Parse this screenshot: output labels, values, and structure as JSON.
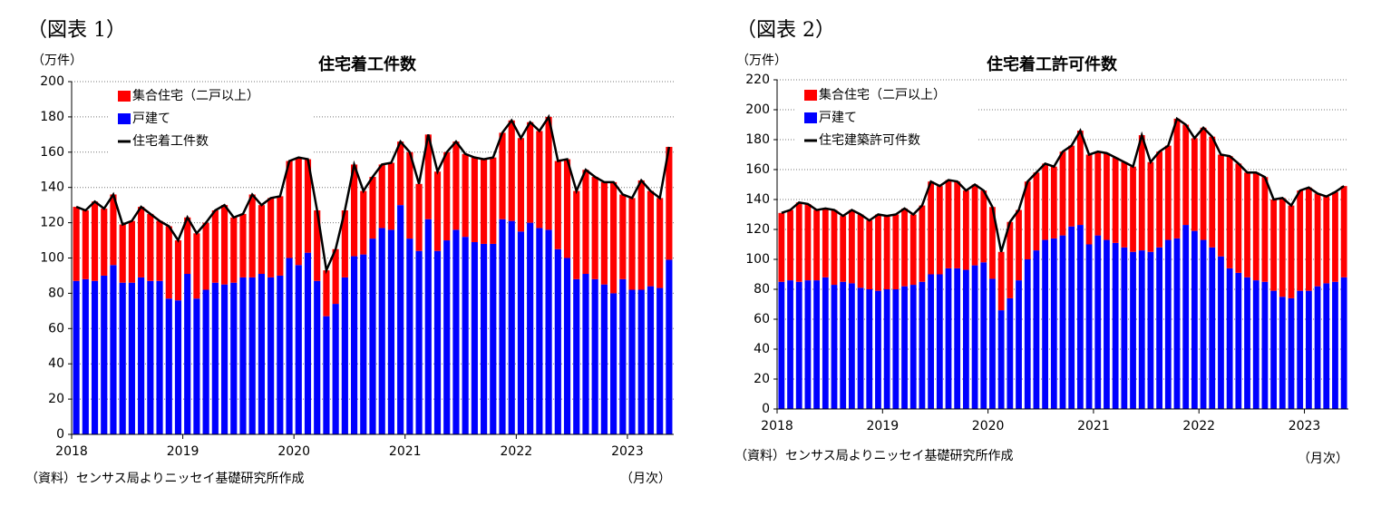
{
  "chart_data": [
    {
      "type": "bar",
      "stacked": true,
      "figure_label": "（図表 1）",
      "title": "住宅着工件数",
      "y_label": "（万件）",
      "x_unit": "（月次）",
      "source": "（資料）センサス局よりニッセイ基礎研究所作成",
      "categories": [
        "2018",
        null,
        null,
        null,
        null,
        null,
        null,
        null,
        null,
        null,
        null,
        null,
        "2019",
        null,
        null,
        null,
        null,
        null,
        null,
        null,
        null,
        null,
        null,
        null,
        "2020",
        null,
        null,
        null,
        null,
        null,
        null,
        null,
        null,
        null,
        null,
        null,
        "2021",
        null,
        null,
        null,
        null,
        null,
        null,
        null,
        null,
        null,
        null,
        null,
        "2022",
        null,
        null,
        null,
        null,
        null,
        null,
        null,
        null,
        null,
        null,
        null,
        "2023",
        null,
        null,
        null,
        null
      ],
      "ylim": [
        0,
        200
      ],
      "yticks": [
        0,
        20,
        40,
        60,
        80,
        100,
        120,
        140,
        160,
        180,
        200
      ],
      "grid": true,
      "series": [
        {
          "name": "集合住宅（二戸以上）",
          "color": "#ff0000",
          "stack": true,
          "values": [
            42,
            39,
            45,
            38,
            40,
            33,
            35,
            40,
            38,
            34,
            41,
            34,
            32,
            37,
            38,
            41,
            45,
            37,
            36,
            47,
            39,
            45,
            45,
            55,
            61,
            53,
            40,
            26,
            31,
            38,
            52,
            36,
            35,
            36,
            38,
            36,
            49,
            38,
            48,
            45,
            50,
            50,
            47,
            48,
            48,
            49,
            49,
            57,
            53,
            57,
            55,
            64,
            50,
            56,
            50,
            59,
            58,
            58,
            63,
            48,
            52,
            62,
            54,
            51,
            64
          ]
        },
        {
          "name": "戸建て",
          "color": "#0000ff",
          "stack": true,
          "values": [
            87,
            88,
            87,
            90,
            96,
            86,
            86,
            89,
            87,
            87,
            77,
            76,
            91,
            77,
            82,
            86,
            85,
            86,
            89,
            89,
            91,
            89,
            90,
            100,
            96,
            103,
            87,
            67,
            74,
            89,
            101,
            102,
            111,
            117,
            116,
            130,
            111,
            104,
            122,
            104,
            110,
            116,
            112,
            109,
            108,
            108,
            122,
            121,
            115,
            120,
            117,
            116,
            105,
            100,
            88,
            91,
            88,
            85,
            80,
            88,
            82,
            82,
            84,
            83,
            99
          ]
        },
        {
          "name": "住宅着工件数",
          "color": "#000000",
          "line": true,
          "values": [
            129,
            127,
            132,
            128,
            136,
            119,
            121,
            129,
            125,
            121,
            118,
            110,
            123,
            114,
            120,
            127,
            130,
            123,
            125,
            136,
            130,
            134,
            135,
            155,
            157,
            156,
            127,
            93,
            105,
            127,
            153,
            138,
            146,
            153,
            154,
            166,
            160,
            142,
            170,
            149,
            160,
            166,
            159,
            157,
            156,
            157,
            171,
            178,
            168,
            177,
            172,
            180,
            155,
            156,
            138,
            150,
            146,
            143,
            143,
            136,
            134,
            144,
            138,
            134,
            163
          ]
        }
      ]
    },
    {
      "type": "bar",
      "stacked": true,
      "figure_label": "（図表 2）",
      "title": "住宅着工許可件数",
      "y_label": "（万件）",
      "x_unit": "（月次）",
      "source": "（資料）センサス局よりニッセイ基礎研究所作成",
      "categories": [
        "2018",
        null,
        null,
        null,
        null,
        null,
        null,
        null,
        null,
        null,
        null,
        null,
        "2019",
        null,
        null,
        null,
        null,
        null,
        null,
        null,
        null,
        null,
        null,
        null,
        "2020",
        null,
        null,
        null,
        null,
        null,
        null,
        null,
        null,
        null,
        null,
        null,
        "2021",
        null,
        null,
        null,
        null,
        null,
        null,
        null,
        null,
        null,
        null,
        null,
        "2022",
        null,
        null,
        null,
        null,
        null,
        null,
        null,
        null,
        null,
        null,
        null,
        "2023",
        null,
        null,
        null,
        null
      ],
      "ylim": [
        0,
        220
      ],
      "yticks": [
        0,
        20,
        40,
        60,
        80,
        100,
        120,
        140,
        160,
        180,
        200,
        220
      ],
      "grid": true,
      "series": [
        {
          "name": "集合住宅（二戸以上）",
          "color": "#ff0000",
          "stack": true,
          "values": [
            46,
            47,
            53,
            51,
            47,
            46,
            50,
            44,
            49,
            49,
            46,
            51,
            49,
            50,
            52,
            47,
            51,
            62,
            59,
            59,
            58,
            53,
            54,
            48,
            48,
            39,
            51,
            47,
            52,
            52,
            51,
            48,
            56,
            54,
            63,
            60,
            56,
            58,
            57,
            57,
            57,
            77,
            60,
            64,
            63,
            80,
            67,
            62,
            75,
            74,
            68,
            75,
            73,
            70,
            72,
            70,
            61,
            66,
            62,
            67,
            69,
            62,
            58,
            60,
            61
          ]
        },
        {
          "name": "戸建て",
          "color": "#0000ff",
          "stack": true,
          "values": [
            85,
            86,
            85,
            86,
            86,
            88,
            83,
            85,
            84,
            81,
            80,
            79,
            80,
            80,
            82,
            83,
            85,
            90,
            90,
            94,
            94,
            93,
            96,
            98,
            87,
            66,
            74,
            86,
            100,
            106,
            113,
            114,
            116,
            122,
            123,
            110,
            116,
            113,
            111,
            108,
            105,
            106,
            105,
            108,
            113,
            114,
            123,
            119,
            113,
            108,
            102,
            94,
            91,
            88,
            86,
            85,
            79,
            75,
            74,
            79,
            79,
            82,
            84,
            85,
            88
          ]
        },
        {
          "name": "住宅建築許可件数",
          "color": "#000000",
          "line": true,
          "values": [
            131,
            133,
            138,
            137,
            133,
            134,
            133,
            129,
            133,
            130,
            126,
            130,
            129,
            130,
            134,
            130,
            136,
            152,
            149,
            153,
            152,
            146,
            150,
            146,
            135,
            105,
            125,
            133,
            152,
            158,
            164,
            162,
            172,
            176,
            186,
            170,
            172,
            171,
            168,
            165,
            162,
            183,
            165,
            172,
            176,
            194,
            190,
            181,
            188,
            182,
            170,
            169,
            164,
            158,
            158,
            155,
            140,
            141,
            136,
            146,
            148,
            144,
            142,
            145,
            149
          ]
        }
      ]
    }
  ]
}
